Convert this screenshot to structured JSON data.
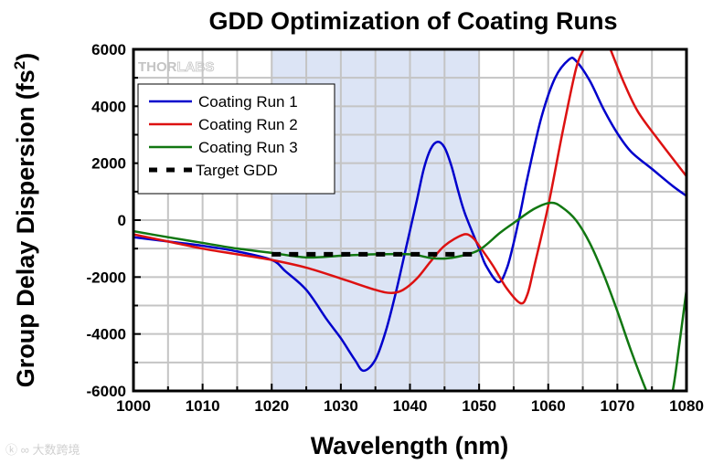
{
  "chart_data": {
    "type": "line",
    "title": "GDD Optimization of Coating Runs",
    "xlabel": "Wavelength (nm)",
    "ylabel": "Group Delay Dispersion (fs",
    "ylabel_superscript": "2",
    "ylabel_close": ")",
    "xlim": [
      1000,
      1080
    ],
    "ylim": [
      -6000,
      6000
    ],
    "xticks": [
      1000,
      1010,
      1020,
      1030,
      1040,
      1050,
      1060,
      1070,
      1080
    ],
    "yticks": [
      -6000,
      -4000,
      -2000,
      0,
      2000,
      4000,
      6000
    ],
    "xtick_labels": [
      "1000",
      "1010",
      "1020",
      "1030",
      "1040",
      "1050",
      "1060",
      "1070",
      "1080"
    ],
    "ytick_labels": [
      "-6000",
      "-4000",
      "-2000",
      "0",
      "2000",
      "4000",
      "6000"
    ],
    "grid": true,
    "highlight_band": {
      "x": [
        1020,
        1050
      ],
      "color": "#dce4f5"
    },
    "legend_position": "top-left",
    "series": [
      {
        "name": "Coating Run 1",
        "color": "#0000cc",
        "style": "solid",
        "x": [
          1000,
          1005,
          1010,
          1015,
          1020,
          1022,
          1025,
          1028,
          1030,
          1032,
          1033.3,
          1035,
          1036.5,
          1038,
          1039.5,
          1041,
          1042,
          1043,
          1044,
          1045,
          1046,
          1047,
          1048,
          1050,
          1051,
          1052.8,
          1054,
          1055,
          1056,
          1057,
          1059,
          1061,
          1063,
          1064,
          1066,
          1068,
          1070,
          1072,
          1075,
          1078,
          1080
        ],
        "y": [
          -600,
          -750,
          -900,
          -1100,
          -1400,
          -1800,
          -2450,
          -3500,
          -4150,
          -4900,
          -5290,
          -4900,
          -3900,
          -2500,
          -900,
          700,
          1800,
          2500,
          2750,
          2550,
          1900,
          1000,
          200,
          -1000,
          -1600,
          -2180,
          -1700,
          -800,
          300,
          1500,
          3600,
          5000,
          5640,
          5600,
          4900,
          3900,
          3050,
          2400,
          1800,
          1200,
          850
        ]
      },
      {
        "name": "Coating Run 2",
        "color": "#dd1111",
        "style": "solid",
        "x": [
          1000,
          1005,
          1010,
          1015,
          1020,
          1025,
          1030,
          1035,
          1037.3,
          1039,
          1041,
          1043,
          1045,
          1047.7,
          1049,
          1050,
          1052,
          1054,
          1056,
          1057,
          1058,
          1060,
          1062,
          1064,
          1065.2,
          1066.5,
          1068,
          1069,
          1071,
          1073,
          1076,
          1080
        ],
        "y": [
          -500,
          -750,
          -1000,
          -1200,
          -1400,
          -1670,
          -2050,
          -2450,
          -2560,
          -2450,
          -2050,
          -1450,
          -900,
          -510,
          -600,
          -900,
          -1600,
          -2400,
          -2920,
          -2600,
          -1600,
          500,
          3000,
          5300,
          6050,
          6800,
          6600,
          6000,
          4800,
          3800,
          2800,
          1540
        ]
      },
      {
        "name": "Coating Run 3",
        "color": "#117711",
        "style": "solid",
        "x": [
          1000,
          1005,
          1010,
          1015,
          1020,
          1025,
          1030,
          1035,
          1040,
          1043,
          1045,
          1047,
          1050,
          1053,
          1055,
          1058,
          1060.4,
          1062,
          1064,
          1066,
          1068,
          1070,
          1072,
          1074.2,
          1075.5,
          1077,
          1078,
          1079,
          1080
        ],
        "y": [
          -390,
          -600,
          -800,
          -1000,
          -1150,
          -1310,
          -1250,
          -1200,
          -1200,
          -1330,
          -1350,
          -1280,
          -1050,
          -450,
          -100,
          400,
          610,
          450,
          0,
          -800,
          -1900,
          -3200,
          -4600,
          -6000,
          -6700,
          -6600,
          -6000,
          -4300,
          -2440
        ]
      },
      {
        "name": "Target GDD",
        "color": "#000000",
        "style": "dashed",
        "x": [
          1020,
          1050
        ],
        "y": [
          -1200,
          -1200
        ]
      }
    ],
    "annotations": [
      "THORLABS"
    ]
  },
  "watermark": "大数跨境"
}
